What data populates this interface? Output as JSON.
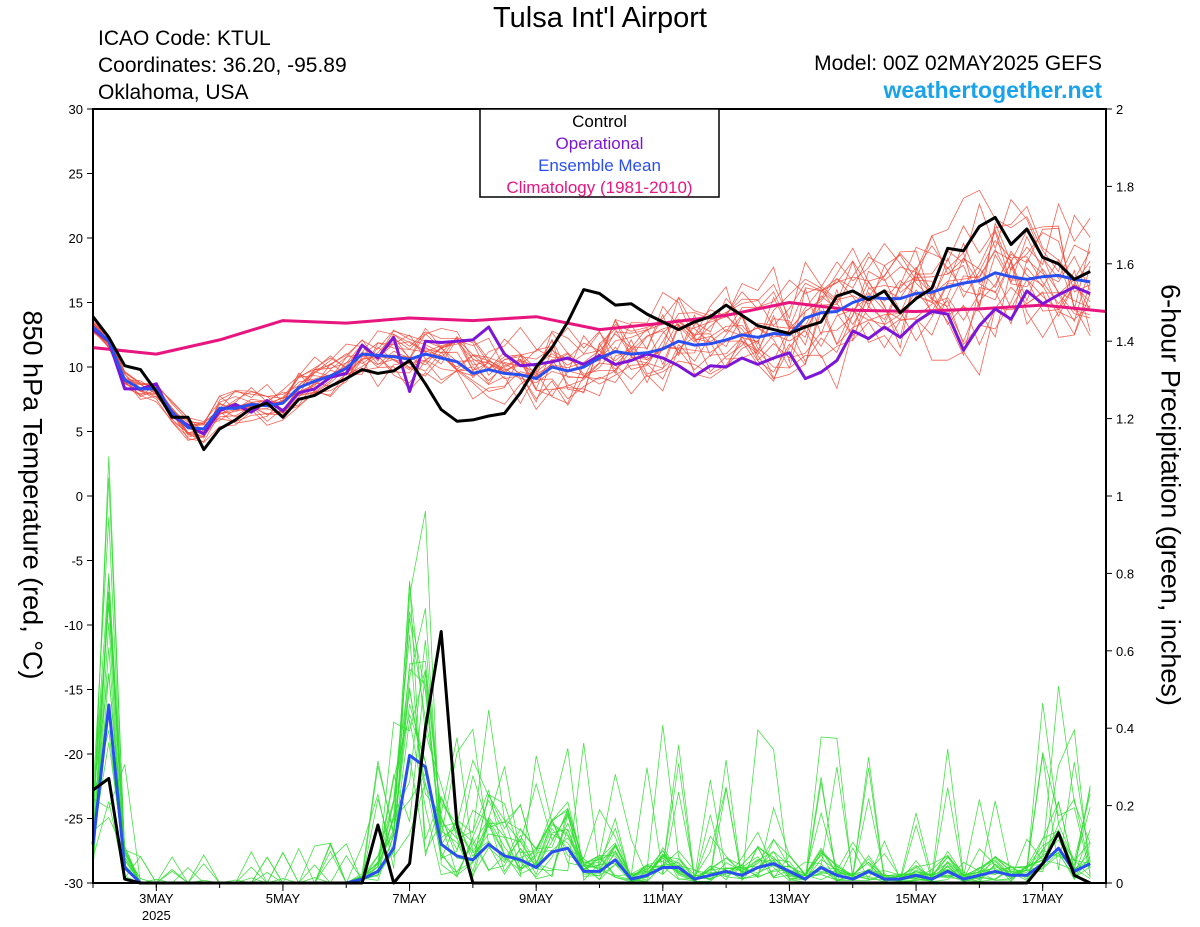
{
  "header": {
    "title": "Tulsa Int'l Airport",
    "icao": "ICAO Code: KTUL",
    "coordinates": "Coordinates: 36.20, -95.89",
    "location": "Oklahoma, USA",
    "model": "Model: 00Z 02MAY2025 GEFS",
    "site": "weathertogether.net"
  },
  "colors": {
    "members": "#f04a3a",
    "precip_members": "#33dd33",
    "control": "#000000",
    "operational": "#7b16d8",
    "ensemble_mean": "#2a4ff0",
    "climatology": "#e8157f"
  },
  "chart_data": {
    "type": "line",
    "xlabel": "",
    "ylabel": "850 hPa Temperature (red, °C)",
    "y2label": "6-hour Precipitation (green, inches)",
    "ylim": [
      -30,
      30
    ],
    "y2lim": [
      0,
      2
    ],
    "yticks": [
      30,
      25,
      20,
      15,
      10,
      5,
      0,
      -5,
      -10,
      -15,
      -20,
      -25,
      -30
    ],
    "y2ticks": [
      "2",
      "1.8",
      "1.6",
      "1.4",
      "1.2",
      "1",
      "0.8",
      "0.6",
      "0.4",
      "0.2",
      "0"
    ],
    "x_start_day": 2.0,
    "x_end_day": 18.0,
    "x_step_days": 0.25,
    "xticks": [
      {
        "label": "3MAY",
        "sub": "2025",
        "day": 3
      },
      {
        "label": "5MAY",
        "sub": "",
        "day": 5
      },
      {
        "label": "7MAY",
        "sub": "",
        "day": 7
      },
      {
        "label": "9MAY",
        "sub": "",
        "day": 9
      },
      {
        "label": "11MAY",
        "sub": "",
        "day": 11
      },
      {
        "label": "13MAY",
        "sub": "",
        "day": 13
      },
      {
        "label": "15MAY",
        "sub": "",
        "day": 15
      },
      {
        "label": "17MAY",
        "sub": "",
        "day": 17
      }
    ],
    "legend": [
      "Control",
      "Operational",
      "Ensemble Mean",
      "Climatology (1981-2010)"
    ],
    "series": [
      {
        "name": "Control",
        "axis": "temp",
        "values": [
          13.9,
          12.3,
          10.1,
          9.8,
          8.1,
          6.1,
          6.1,
          3.6,
          5.2,
          5.9,
          6.8,
          7.2,
          6.1,
          7.5,
          7.8,
          8.5,
          9.1,
          9.8,
          9.5,
          9.7,
          10.5,
          8.7,
          6.7,
          5.8,
          5.9,
          6.2,
          6.4,
          8.0,
          10.0,
          11.5,
          13.5,
          16.0,
          15.7,
          14.8,
          14.9,
          14.1,
          13.5,
          12.9,
          13.5,
          13.9,
          14.8,
          14.0,
          13.2,
          12.9,
          12.6,
          13.1,
          13.5,
          15.5,
          15.9,
          15.2,
          15.9,
          14.2,
          15.3,
          16.1,
          19.2,
          19.0,
          20.9,
          21.6,
          19.5,
          20.7,
          18.5,
          18.0,
          16.8,
          17.4
        ]
      },
      {
        "name": "Operational",
        "axis": "temp",
        "values": [
          12.9,
          12.0,
          8.3,
          8.3,
          8.7,
          6.2,
          5.5,
          4.8,
          6.6,
          7.1,
          6.5,
          7.4,
          6.6,
          8.0,
          8.3,
          9.2,
          9.5,
          11.7,
          10.7,
          12.3,
          8.1,
          12.0,
          11.9,
          12.0,
          12.1,
          13.1,
          11.0,
          10.1,
          10.2,
          10.4,
          10.7,
          10.2,
          10.9,
          10.2,
          10.5,
          11.0,
          10.7,
          10.1,
          9.3,
          10.1,
          10.0,
          10.7,
          10.2,
          10.7,
          11.1,
          9.1,
          9.6,
          10.5,
          12.8,
          12.2,
          13.1,
          12.3,
          13.5,
          14.3,
          14.1,
          11.3,
          13.2,
          14.5,
          13.7,
          15.9,
          14.9,
          15.6,
          16.2,
          15.7
        ]
      },
      {
        "name": "Ensemble Mean",
        "axis": "temp",
        "values": [
          13.1,
          12.0,
          9.0,
          8.3,
          8.3,
          6.5,
          5.3,
          5.2,
          6.8,
          6.8,
          7.1,
          7.0,
          7.2,
          8.4,
          8.9,
          9.3,
          9.9,
          11.0,
          10.9,
          10.8,
          10.6,
          11.0,
          10.7,
          10.4,
          9.5,
          9.8,
          9.5,
          9.4,
          9.1,
          10.0,
          9.7,
          10.0,
          10.7,
          11.2,
          11.0,
          11.1,
          11.4,
          12.0,
          11.7,
          11.8,
          12.1,
          12.5,
          12.3,
          12.6,
          12.5,
          13.8,
          14.2,
          14.3,
          15.0,
          15.4,
          15.3,
          15.3,
          15.7,
          15.8,
          16.2,
          16.5,
          16.7,
          17.3,
          17.0,
          16.8,
          17.0,
          17.1,
          16.8,
          16.6
        ]
      },
      {
        "name": "Climatology (1981-2010)",
        "axis": "temp",
        "days": [
          2.0,
          3.0,
          4.0,
          5.0,
          6.0,
          7.0,
          8.0,
          9.0,
          10.0,
          11.0,
          12.0,
          13.0,
          14.0,
          15.0,
          16.0,
          17.0,
          18.0
        ],
        "values": [
          11.5,
          11.0,
          12.1,
          13.6,
          13.4,
          13.8,
          13.6,
          13.9,
          12.9,
          13.4,
          14.0,
          15.0,
          14.4,
          14.3,
          14.5,
          14.8,
          14.3
        ]
      },
      {
        "name": "Control",
        "axis": "precip",
        "values": [
          0.24,
          0.27,
          0.01,
          0.0,
          0.0,
          0.0,
          0.0,
          0.0,
          0.0,
          0.0,
          0.0,
          0.0,
          0.0,
          0.0,
          0.0,
          0.0,
          0.0,
          0.0,
          0.15,
          0.0,
          0.05,
          0.4,
          0.65,
          0.15,
          0.0,
          0.0,
          0.0,
          0.0,
          0.0,
          0.0,
          0.0,
          0.0,
          0.0,
          0.0,
          0.0,
          0.0,
          0.0,
          0.0,
          0.0,
          0.0,
          0.0,
          0.0,
          0.0,
          0.0,
          0.0,
          0.0,
          0.0,
          0.0,
          0.0,
          0.0,
          0.0,
          0.0,
          0.0,
          0.0,
          0.0,
          0.0,
          0.0,
          0.0,
          0.0,
          0.0,
          0.05,
          0.13,
          0.02,
          0.0
        ]
      },
      {
        "name": "Ensemble Mean",
        "axis": "precip",
        "values": [
          0.1,
          0.46,
          0.04,
          0.0,
          0.0,
          0.0,
          0.0,
          0.0,
          0.0,
          0.0,
          0.0,
          0.0,
          0.0,
          0.0,
          0.0,
          0.0,
          0.0,
          0.01,
          0.03,
          0.09,
          0.33,
          0.3,
          0.1,
          0.07,
          0.06,
          0.1,
          0.07,
          0.06,
          0.04,
          0.08,
          0.09,
          0.03,
          0.03,
          0.06,
          0.01,
          0.02,
          0.04,
          0.04,
          0.01,
          0.02,
          0.03,
          0.02,
          0.04,
          0.05,
          0.03,
          0.01,
          0.04,
          0.02,
          0.01,
          0.03,
          0.01,
          0.01,
          0.02,
          0.01,
          0.03,
          0.01,
          0.02,
          0.03,
          0.02,
          0.02,
          0.05,
          0.09,
          0.03,
          0.05
        ]
      }
    ]
  }
}
